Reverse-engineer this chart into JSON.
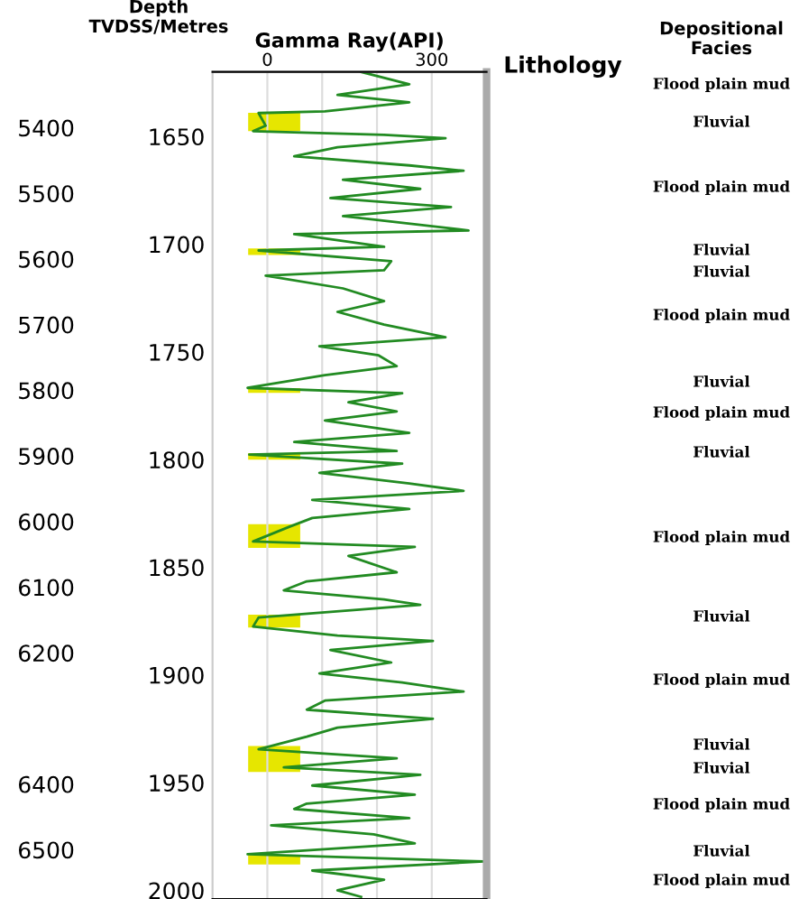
{
  "chart_data": {
    "type": "line",
    "orientation": "horizontal",
    "x2label": "Gamma Ray(API)",
    "x": [
      1620,
      1625.7,
      1630.7,
      1634.1,
      1638.3,
      1639.1,
      1645,
      1647.5,
      1649.2,
      1650.8,
      1655,
      1659.2,
      1663.4,
      1665.9,
      1670.1,
      1674.3,
      1678.5,
      1682.7,
      1686.9,
      1693.6,
      1695.3,
      1701.2,
      1702.9,
      1707.9,
      1712.1,
      1714.6,
      1720.5,
      1726.4,
      1731.4,
      1737.3,
      1743.2,
      1747.4,
      1751.6,
      1756.6,
      1760.8,
      1766.7,
      1769.2,
      1773.4,
      1777.6,
      1781.8,
      1787.6,
      1791.8,
      1796,
      1797.7,
      1801.9,
      1806.1,
      1811.1,
      1814.5,
      1818.7,
      1822.9,
      1827.1,
      1831.3,
      1838,
      1840.5,
      1844.7,
      1852.3,
      1856.5,
      1860.7,
      1864.9,
      1867.4,
      1873.3,
      1877.5,
      1881.7,
      1884.2,
      1888.4,
      1894.2,
      1899.3,
      1903.5,
      1907.7,
      1911.9,
      1916.1,
      1920.3,
      1924.4,
      1928.6,
      1934.5,
      1938.7,
      1942.9,
      1946.3,
      1951.3,
      1955.5,
      1959.7,
      1962.2,
      1966.4,
      1969.8,
      1974,
      1978.2,
      1983.2,
      1986.6,
      1990.8,
      1995,
      2000,
      2003
    ],
    "series": [
      {
        "color": "#228b22",
        "axis": "x2",
        "values": [
          171,
          259,
          128,
          259,
          105,
          -16,
          -3,
          -26,
          213,
          325,
          128,
          49,
          259,
          358,
          138,
          279,
          115,
          335,
          138,
          367,
          49,
          213,
          -16,
          226,
          213,
          -3,
          138,
          213,
          128,
          213,
          325,
          95,
          203,
          236,
          105,
          -36,
          246,
          148,
          236,
          105,
          259,
          49,
          236,
          -33,
          246,
          95,
          259,
          358,
          82,
          259,
          82,
          39,
          -26,
          269,
          148,
          236,
          72,
          30,
          213,
          279,
          -16,
          -26,
          128,
          302,
          115,
          226,
          95,
          246,
          358,
          105,
          72,
          302,
          128,
          72,
          -16,
          236,
          30,
          279,
          82,
          269,
          72,
          49,
          259,
          7,
          194,
          269,
          -36,
          395,
          82,
          213,
          128,
          171
        ]
      }
    ],
    "x2lim": [
      -100,
      400
    ],
    "x2ticks": [
      0,
      {
        "value": 100,
        "label": null
      },
      {
        "value": 200,
        "label": null
      },
      300
    ],
    "ylim": [
      2004,
      1620
    ],
    "yticks": [
      1650,
      1700,
      1750,
      1800,
      1850,
      1900,
      1950,
      2000
    ],
    "y2lim": [
      6575,
      5315
    ],
    "y2ticks": [
      5400,
      5500,
      5600,
      5700,
      5800,
      5900,
      6000,
      6100,
      6200,
      6400,
      6500
    ],
    "grid": "x",
    "bands": [
      {
        "axis": "y",
        "from": 1639,
        "to": 1647.5,
        "color": "#e6e600"
      },
      {
        "axis": "y",
        "from": 1702,
        "to": 1705,
        "color": "#e6e600"
      },
      {
        "axis": "y",
        "from": 1766.8,
        "to": 1769,
        "color": "#e6e600"
      },
      {
        "axis": "y",
        "from": 1797,
        "to": 1800,
        "color": "#e6e600"
      },
      {
        "axis": "y",
        "from": 1830,
        "to": 1841,
        "color": "#e6e600"
      },
      {
        "axis": "y",
        "from": 1872,
        "to": 1878,
        "color": "#e6e600"
      },
      {
        "axis": "y",
        "from": 1933,
        "to": 1945,
        "color": "#e6e600"
      },
      {
        "axis": "y",
        "from": 1983.6,
        "to": 1988,
        "color": "#e6e600"
      }
    ],
    "annotations": [
      "Depth\nTVDSS/Metres",
      "Lithology",
      "Depositional\nFacies",
      "Flood plain mud",
      "Fluvial",
      "Flood plain mud",
      "Fluvial",
      "Fluvial",
      "Flood plain mud",
      "Fluvial",
      "Flood plain mud",
      "Fluvial",
      "Flood plain mud",
      "Fluvial",
      "Flood plain mud",
      "Fluvial",
      "Fluvial",
      "Flood plain mud",
      "Fluvial",
      "Flood plain mud"
    ]
  }
}
